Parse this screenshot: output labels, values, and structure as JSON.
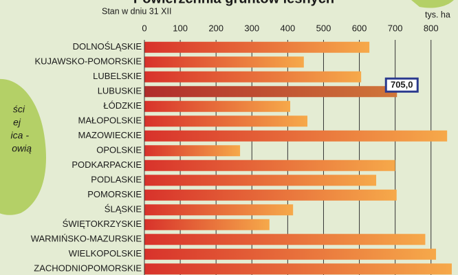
{
  "chart_data": {
    "type": "hbar",
    "title": "Powierzchnia gruntów leśnych",
    "subtitle": "Stan w dniu 31 XII",
    "unit": "tys. ha",
    "side_text": [
      "ści",
      "ej",
      "ica -",
      "owią"
    ],
    "categories": [
      "DOLNOŚLĄSKIE",
      "KUJAWSKO-POMORSKIE",
      "LUBELSKIE",
      "LUBUSKIE",
      "ŁÓDZKIE",
      "MAŁOPOLSKIE",
      "MAZOWIECKIE",
      "OPOLSKIE",
      "PODKARPACKIE",
      "PODLASKIE",
      "POMORSKIE",
      "ŚLĄSKIE",
      "ŚWIĘTOKRZYSKIE",
      "WARMIŃSKO-MAZURSKIE",
      "WIELKOPOLSKIE",
      "ZACHODNIOPOMORSKIE"
    ],
    "values": [
      628,
      445,
      605,
      705.0,
      407,
      455,
      845,
      267,
      700,
      647,
      704,
      415,
      349,
      784,
      814,
      858
    ],
    "value_labels": [
      null,
      null,
      null,
      "705,0",
      null,
      null,
      null,
      null,
      null,
      null,
      null,
      null,
      null,
      null,
      null,
      null
    ],
    "gradient": [
      "#d8322b",
      "#f6a94a"
    ],
    "highlight_gradient": [
      "#b02d2b",
      "#d0763a"
    ],
    "xlim": [
      0,
      860
    ],
    "xticks": [
      0,
      100,
      200,
      300,
      400,
      500,
      600,
      700,
      800
    ],
    "grid": true
  }
}
